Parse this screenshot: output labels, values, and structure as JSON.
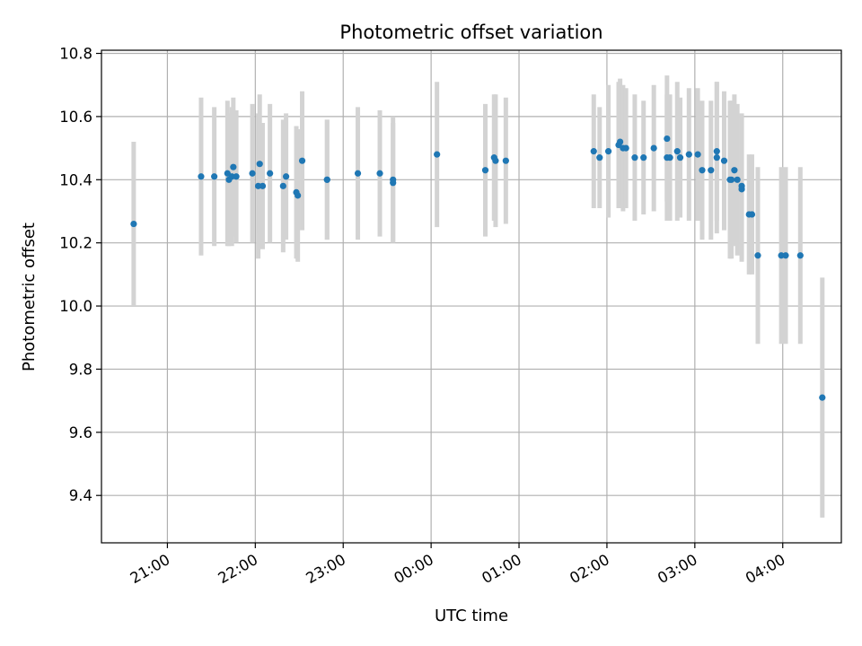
{
  "chart_data": {
    "type": "scatter",
    "title": "Photometric offset variation",
    "xlabel": "UTC time",
    "ylabel": "Photometric offset",
    "x_is_time": true,
    "x_range": [
      "20:15",
      "04:40"
    ],
    "ylim": [
      9.25,
      10.81
    ],
    "yticks": [
      9.4,
      9.6,
      9.8,
      10.0,
      10.2,
      10.4,
      10.6,
      10.8
    ],
    "ytick_labels": [
      "9.4",
      "9.6",
      "9.8",
      "10.0",
      "10.2",
      "10.4",
      "10.6",
      "10.8"
    ],
    "xticks": [
      "21:00",
      "22:00",
      "23:00",
      "00:00",
      "01:00",
      "02:00",
      "03:00",
      "04:00"
    ],
    "xtick_labels": [
      "21:00",
      "22:00",
      "23:00",
      "00:00",
      "01:00",
      "02:00",
      "03:00",
      "04:00"
    ],
    "grid": true,
    "colors": {
      "points": "#1f77b4",
      "errorbars": "#d3d3d3",
      "grid": "#b0b0b0"
    },
    "series": [
      {
        "x": [
          "20:37",
          "21:23",
          "21:32",
          "21:41",
          "21:42",
          "21:44",
          "21:45",
          "21:47",
          "21:58",
          "22:02",
          "22:03",
          "22:05",
          "22:10",
          "22:19",
          "22:21",
          "22:28",
          "22:29",
          "22:32",
          "22:49",
          "22:49",
          "23:10",
          "23:25",
          "23:34",
          "23:34",
          "00:04",
          "00:37",
          "00:43",
          "00:44",
          "00:51",
          "01:51",
          "01:55",
          "02:01",
          "02:08",
          "02:09",
          "02:11",
          "02:13",
          "02:19",
          "02:25",
          "02:32",
          "02:41",
          "02:41",
          "02:43",
          "02:48",
          "02:50",
          "02:56",
          "03:02",
          "03:05",
          "03:11",
          "03:15",
          "03:15",
          "03:20",
          "03:24",
          "03:25",
          "03:27",
          "03:29",
          "03:32",
          "03:32",
          "03:37",
          "03:39",
          "03:43",
          "03:59",
          "04:02",
          "04:12",
          "04:27"
        ],
        "y": [
          10.26,
          10.41,
          10.41,
          10.42,
          10.4,
          10.41,
          10.44,
          10.41,
          10.42,
          10.38,
          10.45,
          10.38,
          10.42,
          10.38,
          10.41,
          10.36,
          10.35,
          10.46,
          10.4,
          10.4,
          10.42,
          10.42,
          10.4,
          10.39,
          10.48,
          10.43,
          10.47,
          10.46,
          10.46,
          10.49,
          10.47,
          10.49,
          10.51,
          10.52,
          10.5,
          10.5,
          10.47,
          10.47,
          10.5,
          10.47,
          10.53,
          10.47,
          10.49,
          10.47,
          10.48,
          10.48,
          10.43,
          10.43,
          10.47,
          10.49,
          10.46,
          10.4,
          10.4,
          10.43,
          10.4,
          10.37,
          10.38,
          10.29,
          10.29,
          10.16,
          10.16,
          10.16,
          10.16,
          9.71
        ],
        "yerr": [
          0.26,
          0.25,
          0.22,
          0.23,
          0.21,
          0.22,
          0.22,
          0.21,
          0.22,
          0.23,
          0.22,
          0.2,
          0.22,
          0.21,
          0.2,
          0.21,
          0.21,
          0.22,
          0.19,
          0.19,
          0.21,
          0.2,
          0.2,
          0.19,
          0.23,
          0.21,
          0.2,
          0.21,
          0.2,
          0.18,
          0.16,
          0.21,
          0.2,
          0.2,
          0.2,
          0.19,
          0.2,
          0.18,
          0.2,
          0.2,
          0.2,
          0.2,
          0.22,
          0.19,
          0.21,
          0.21,
          0.22,
          0.22,
          0.24,
          0.22,
          0.22,
          0.25,
          0.25,
          0.24,
          0.24,
          0.23,
          0.23,
          0.19,
          0.19,
          0.28,
          0.28,
          0.28,
          0.28,
          0.38
        ]
      }
    ]
  }
}
